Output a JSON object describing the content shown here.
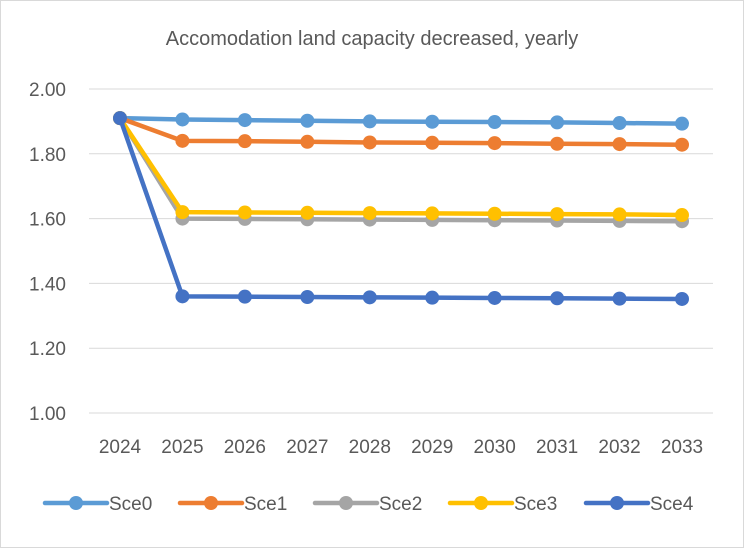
{
  "chart_data": {
    "type": "line",
    "title": "Accomodation land capacity decreased, yearly",
    "xlabel": "",
    "ylabel": "",
    "ylim": [
      1.0,
      2.0
    ],
    "yticks": [
      "1.00",
      "1.20",
      "1.40",
      "1.60",
      "1.80",
      "2.00"
    ],
    "categories": [
      "2024",
      "2025",
      "2026",
      "2027",
      "2028",
      "2029",
      "2030",
      "2031",
      "2032",
      "2033"
    ],
    "grid": true,
    "legend_position": "bottom",
    "series": [
      {
        "name": "Sce0",
        "color": "#5B9BD5",
        "values": [
          1.91,
          1.906,
          1.904,
          1.902,
          1.9,
          1.899,
          1.898,
          1.897,
          1.895,
          1.893
        ]
      },
      {
        "name": "Sce1",
        "color": "#ED7D31",
        "values": [
          1.91,
          1.84,
          1.839,
          1.837,
          1.835,
          1.834,
          1.833,
          1.831,
          1.83,
          1.828
        ]
      },
      {
        "name": "Sce2",
        "color": "#A5A5A5",
        "values": [
          1.91,
          1.6,
          1.599,
          1.598,
          1.597,
          1.596,
          1.595,
          1.594,
          1.593,
          1.592
        ]
      },
      {
        "name": "Sce3",
        "color": "#FFC000",
        "values": [
          1.91,
          1.62,
          1.619,
          1.618,
          1.617,
          1.616,
          1.615,
          1.614,
          1.613,
          1.611
        ]
      },
      {
        "name": "Sce4",
        "color": "#4472C4",
        "values": [
          1.91,
          1.36,
          1.359,
          1.358,
          1.357,
          1.356,
          1.355,
          1.354,
          1.353,
          1.352
        ]
      }
    ]
  }
}
